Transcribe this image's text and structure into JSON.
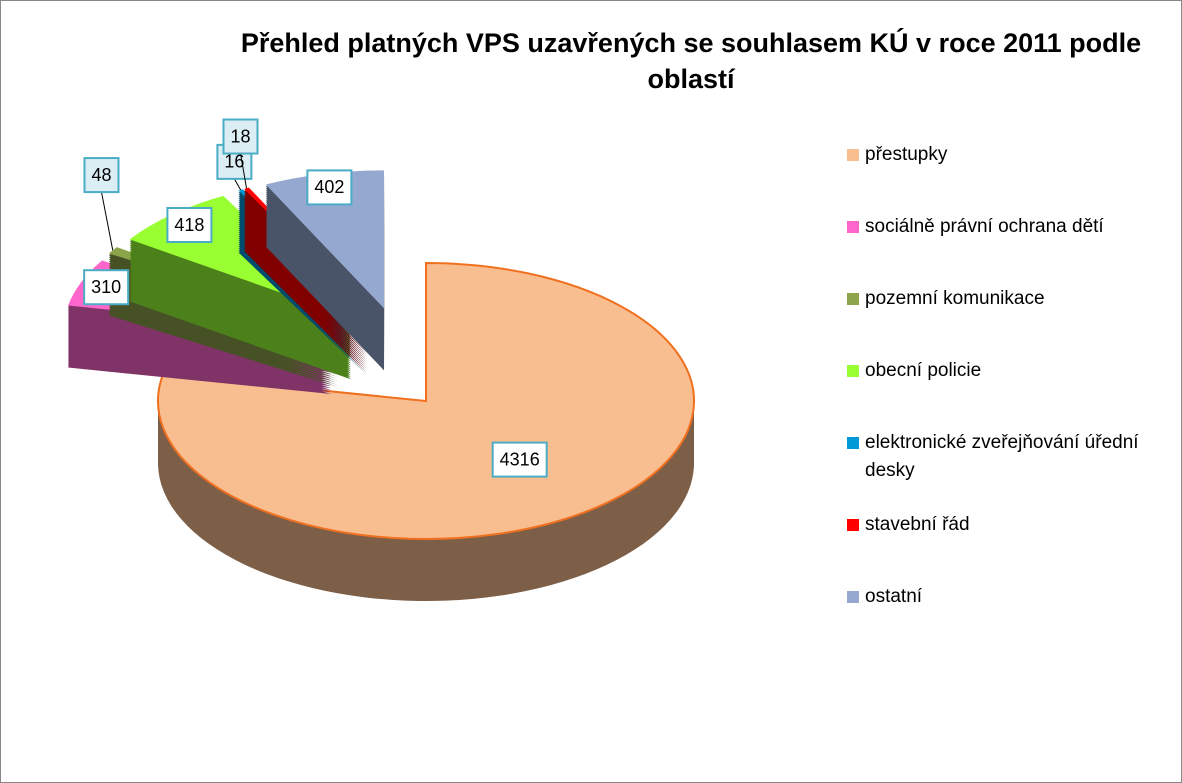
{
  "chart_data": {
    "type": "pie3d",
    "title": "Přehled platných VPS uzavřených se souhlasem KÚ v roce 2011 podle oblastí",
    "categories": [
      "přestupky",
      "sociálně právní ochrana dětí",
      "pozemní komunikace",
      "obecní policie",
      "elektronické zveřejňování úřední desky",
      "stavební řád",
      "ostatní"
    ],
    "values": [
      4316,
      310,
      48,
      418,
      16,
      18,
      402
    ],
    "colors": [
      "#f9be8f",
      "#ff66cc",
      "#8ca54a",
      "#99ff33",
      "#0099d8",
      "#ff0000",
      "#95a9d0"
    ],
    "legend": "right"
  }
}
